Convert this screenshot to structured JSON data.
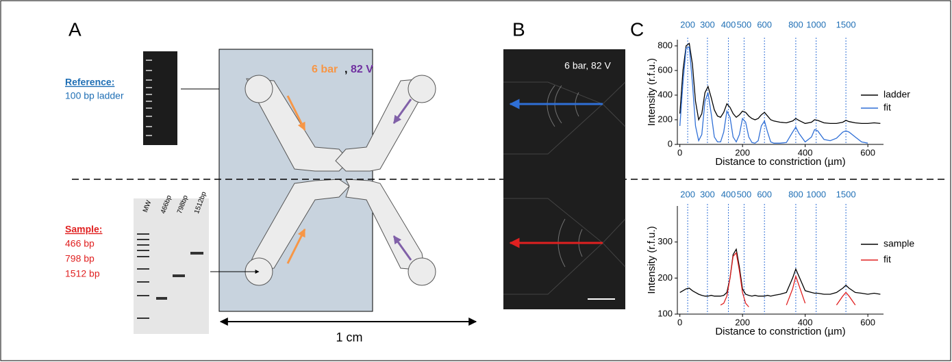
{
  "figure": {
    "panel_a": {
      "label": "A",
      "reference": "Reference:",
      "reference_detail": "100 bp ladder",
      "sample": "Sample:",
      "sample_sizes": [
        "466 bp",
        "798 bp",
        "1512 bp"
      ],
      "gel_lanes": [
        "MW",
        "466bp",
        "798bp",
        "1512bp"
      ],
      "pressure": "6 bar",
      "separator": ",",
      "voltage": "82 V",
      "scale": "1 cm"
    },
    "panel_b": {
      "label": "B",
      "condition": "6 bar, 82 V"
    },
    "panel_c": {
      "label": "C"
    }
  },
  "chart_data": [
    {
      "type": "line",
      "xlabel": "Distance to constriction (µm)",
      "ylabel": "Intensity (r.f.u.)",
      "x": [
        0,
        10,
        20,
        30,
        40,
        50,
        60,
        70,
        80,
        90,
        100,
        110,
        120,
        130,
        140,
        150,
        160,
        170,
        180,
        190,
        200,
        210,
        220,
        230,
        240,
        250,
        260,
        270,
        280,
        290,
        300,
        320,
        340,
        360,
        370,
        380,
        400,
        420,
        430,
        440,
        460,
        480,
        500,
        520,
        530,
        540,
        560,
        580,
        600,
        620,
        640
      ],
      "series": [
        {
          "name": "ladder",
          "color": "#000000",
          "values": [
            250,
            600,
            800,
            820,
            650,
            350,
            200,
            250,
            420,
            470,
            380,
            280,
            230,
            220,
            260,
            330,
            300,
            250,
            220,
            240,
            270,
            260,
            230,
            210,
            200,
            210,
            240,
            260,
            230,
            200,
            190,
            180,
            175,
            190,
            210,
            195,
            170,
            180,
            200,
            195,
            175,
            170,
            170,
            180,
            195,
            185,
            175,
            170,
            170,
            175,
            170
          ]
        },
        {
          "name": "fit",
          "color": "#2f6fd6",
          "values": [
            150,
            500,
            780,
            790,
            500,
            150,
            30,
            80,
            350,
            420,
            250,
            60,
            20,
            20,
            100,
            270,
            220,
            60,
            20,
            80,
            210,
            180,
            60,
            15,
            10,
            30,
            150,
            190,
            100,
            20,
            10,
            10,
            15,
            100,
            140,
            90,
            20,
            60,
            120,
            110,
            40,
            30,
            50,
            100,
            110,
            100,
            60,
            20,
            10,
            null,
            null
          ]
        }
      ],
      "xlim": [
        -8,
        650
      ],
      "xticks": [
        0,
        200,
        400,
        600
      ],
      "ylim": [
        0,
        850
      ],
      "yticks": [
        0,
        200,
        400,
        600,
        800
      ],
      "size_markers": [
        {
          "value": 25,
          "label": "200"
        },
        {
          "value": 88,
          "label": "300"
        },
        {
          "value": 155,
          "label": "400"
        },
        {
          "value": 205,
          "label": "500"
        },
        {
          "value": 270,
          "label": "600"
        },
        {
          "value": 370,
          "label": "800"
        },
        {
          "value": 435,
          "label": "1000"
        },
        {
          "value": 530,
          "label": "1500"
        }
      ]
    },
    {
      "type": "line",
      "xlabel": "Distance to constriction (µm)",
      "ylabel": "Intensity (r.f.u.)",
      "x": [
        0,
        10,
        20,
        30,
        40,
        50,
        60,
        70,
        80,
        90,
        100,
        110,
        120,
        130,
        140,
        150,
        160,
        170,
        180,
        190,
        200,
        210,
        220,
        230,
        240,
        250,
        260,
        270,
        280,
        290,
        300,
        320,
        340,
        360,
        370,
        380,
        400,
        420,
        430,
        440,
        460,
        480,
        500,
        520,
        530,
        540,
        560,
        580,
        600,
        620,
        640
      ],
      "series": [
        {
          "name": "sample",
          "color": "#000000",
          "values": [
            160,
            165,
            170,
            172,
            165,
            160,
            155,
            152,
            150,
            150,
            152,
            150,
            150,
            150,
            152,
            160,
            200,
            265,
            280,
            230,
            170,
            155,
            152,
            150,
            152,
            150,
            150,
            150,
            152,
            150,
            152,
            155,
            160,
            200,
            225,
            205,
            165,
            160,
            158,
            158,
            155,
            155,
            160,
            172,
            180,
            172,
            160,
            158,
            155,
            158,
            155
          ]
        },
        {
          "name": "fit",
          "color": "#e02020",
          "values": [
            null,
            null,
            null,
            null,
            null,
            null,
            null,
            null,
            null,
            null,
            null,
            null,
            null,
            125,
            130,
            150,
            200,
            260,
            270,
            220,
            160,
            130,
            120,
            null,
            null,
            null,
            null,
            null,
            null,
            null,
            null,
            null,
            125,
            170,
            205,
            180,
            130,
            null,
            null,
            null,
            null,
            null,
            125,
            150,
            160,
            150,
            125,
            null,
            null,
            null,
            null
          ]
        }
      ],
      "xlim": [
        -8,
        650
      ],
      "xticks": [
        0,
        200,
        400,
        600
      ],
      "ylim": [
        100,
        400
      ],
      "yticks": [
        100,
        200,
        300
      ],
      "size_markers": [
        {
          "value": 25,
          "label": "200"
        },
        {
          "value": 88,
          "label": "300"
        },
        {
          "value": 155,
          "label": "400"
        },
        {
          "value": 205,
          "label": "500"
        },
        {
          "value": 270,
          "label": "600"
        },
        {
          "value": 370,
          "label": "800"
        },
        {
          "value": 435,
          "label": "1000"
        },
        {
          "value": 530,
          "label": "1500"
        }
      ]
    }
  ]
}
